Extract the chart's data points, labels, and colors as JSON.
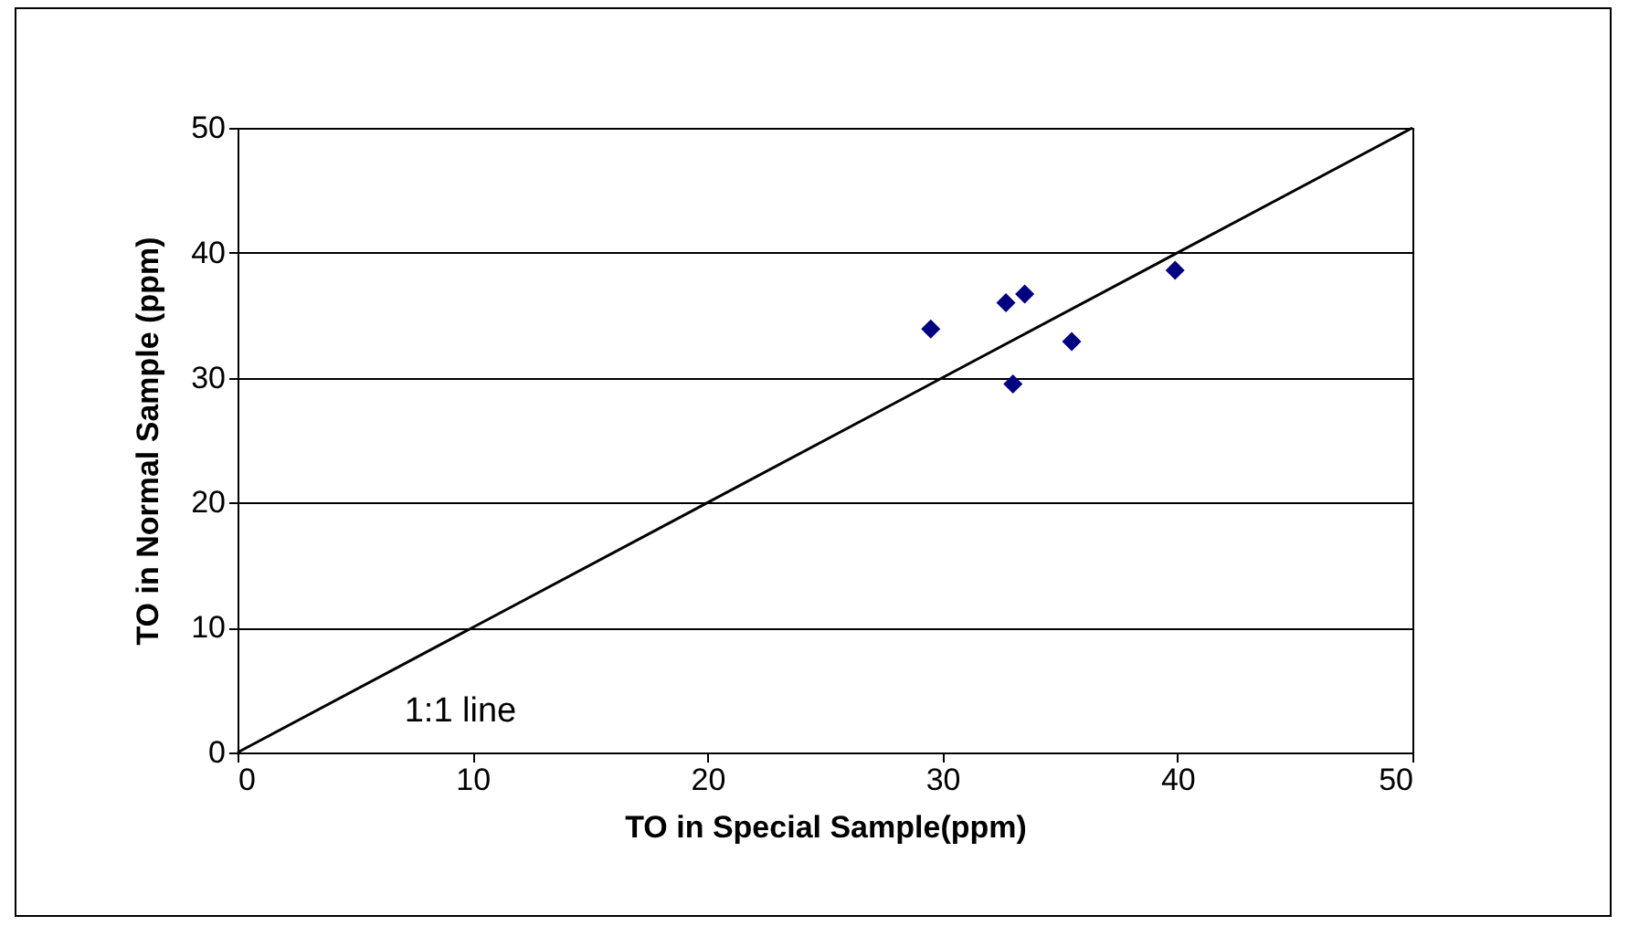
{
  "chart_data": {
    "type": "scatter",
    "xlabel": "TO in Special Sample(ppm)",
    "ylabel": "TO in Normal Sample (ppm)",
    "xlim": [
      0,
      50
    ],
    "ylim": [
      0,
      50
    ],
    "xticks": [
      0,
      10,
      20,
      30,
      40,
      50
    ],
    "yticks": [
      0,
      10,
      20,
      30,
      40,
      50
    ],
    "grid": "y",
    "legend": false,
    "marker": "diamond",
    "series": [
      {
        "color": "#000080",
        "x": [
          29.5,
          32.7,
          33.5,
          33.0,
          35.5,
          39.9
        ],
        "values": [
          33.9,
          36.0,
          36.7,
          29.5,
          32.9,
          38.6
        ]
      },
      {
        "type": "line",
        "color": "#000000",
        "x": [
          0,
          50
        ],
        "values": [
          0,
          50
        ],
        "marker": "none"
      }
    ],
    "annotations": [
      "1:1 line"
    ]
  }
}
